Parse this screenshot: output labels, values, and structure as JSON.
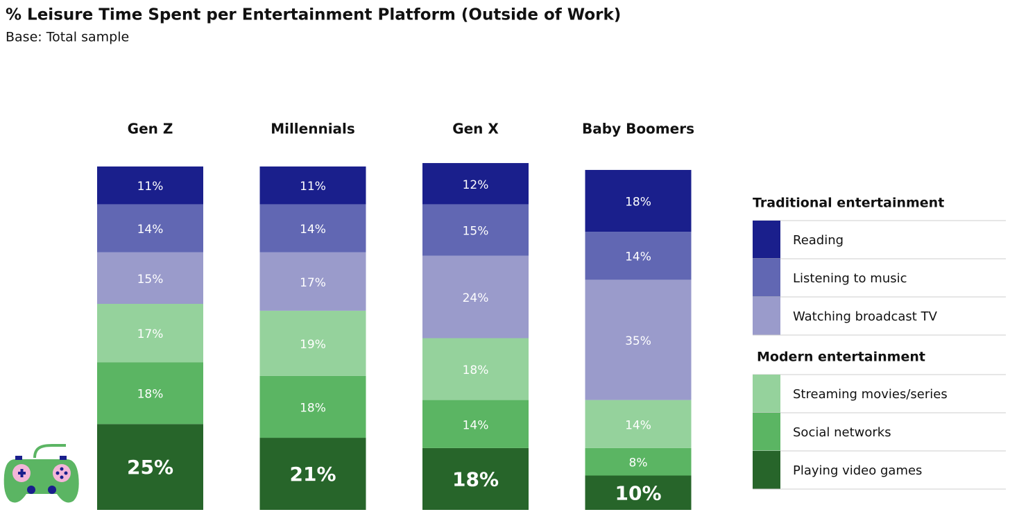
{
  "chart_data": {
    "type": "stacked_bar",
    "title": "% Leisure Time Spent per Entertainment Platform (Outside of Work)",
    "subtitle": "Base: Total sample",
    "categories": [
      "Gen Z",
      "Millennials",
      "Gen X",
      "Baby Boomers"
    ],
    "ylim": [
      0,
      100
    ],
    "series_groups": [
      {
        "name": "Traditional entertainment",
        "series": [
          {
            "name": "Reading",
            "color": "#1a1f8c",
            "values": [
              11,
              11,
              12,
              18
            ],
            "value_labels": [
              "11%",
              "11%",
              "12%",
              "18%"
            ]
          },
          {
            "name": "Listening to music",
            "color": "#6167b3",
            "values": [
              14,
              14,
              15,
              14
            ],
            "value_labels": [
              "14%",
              "14%",
              "15%",
              "14%"
            ]
          },
          {
            "name": "Watching broadcast TV",
            "color": "#9a9bcb",
            "values": [
              15,
              17,
              24,
              35
            ],
            "value_labels": [
              "15%",
              "17%",
              "24%",
              "35%"
            ]
          }
        ]
      },
      {
        "name": "Modern entertainment",
        "series": [
          {
            "name": "Streaming movies/series",
            "color": "#95d29c",
            "values": [
              17,
              19,
              18,
              14
            ],
            "value_labels": [
              "17%",
              "19%",
              "18%",
              "14%"
            ]
          },
          {
            "name": "Social networks",
            "color": "#5bb563",
            "values": [
              18,
              18,
              14,
              8
            ],
            "value_labels": [
              "18%",
              "18%",
              "14%",
              "8%"
            ]
          },
          {
            "name": "Playing video games",
            "color": "#27652a",
            "values": [
              25,
              21,
              18,
              10
            ],
            "value_labels": [
              "25%",
              "21%",
              "18%",
              "10%"
            ]
          }
        ]
      }
    ]
  }
}
